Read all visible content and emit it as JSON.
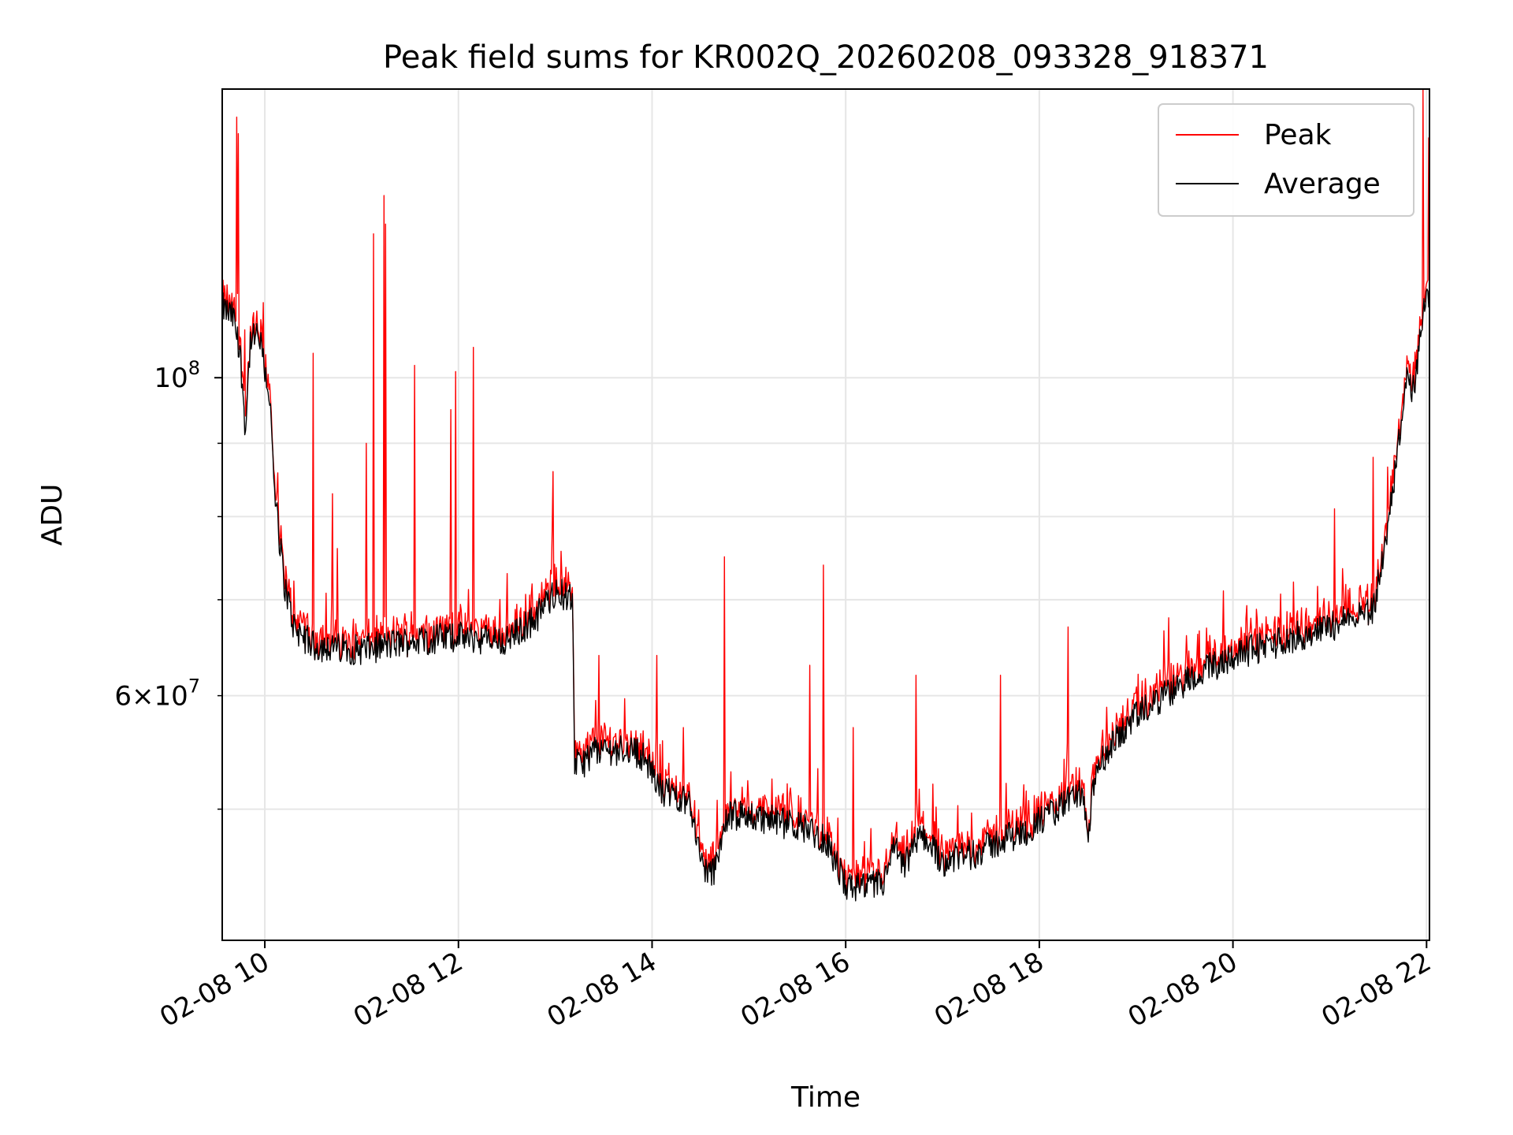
{
  "chart_data": {
    "type": "line",
    "title": "Peak field sums for KR002Q_20260208_093328_918371",
    "xlabel": "Time",
    "ylabel": "ADU",
    "yscale": "log",
    "x_unit": "hours since 02-08 00:00",
    "xlim": [
      9.56,
      22.03
    ],
    "ylim": [
      40500000,
      159000000
    ],
    "grid": true,
    "legend_position": "top-right",
    "x_ticks": [
      {
        "value": 10,
        "label": "02-08 10"
      },
      {
        "value": 12,
        "label": "02-08 12"
      },
      {
        "value": 14,
        "label": "02-08 14"
      },
      {
        "value": 16,
        "label": "02-08 16"
      },
      {
        "value": 18,
        "label": "02-08 18"
      },
      {
        "value": 20,
        "label": "02-08 20"
      },
      {
        "value": 22,
        "label": "02-08 22"
      }
    ],
    "y_major_ticks": [
      {
        "value": 100000000,
        "base": "10",
        "exp": "8"
      }
    ],
    "y_minor_ticks": [
      {
        "value": 50000000
      },
      {
        "value": 60000000,
        "mant": "6",
        "base": "10",
        "exp": "7"
      },
      {
        "value": 70000000
      },
      {
        "value": 80000000
      },
      {
        "value": 90000000
      }
    ],
    "series": [
      {
        "name": "Peak",
        "color": "#ff0000",
        "description": "Per-frame maximum field sum; tracks the average baseline with frequent sharp spikes",
        "spikes": [
          [
            9.71,
            152000000
          ],
          [
            9.73,
            148000000
          ],
          [
            9.79,
            108000000
          ],
          [
            9.92,
            110000000
          ],
          [
            10.05,
            99000000
          ],
          [
            10.5,
            104000000
          ],
          [
            10.7,
            83000000
          ],
          [
            10.75,
            76000000
          ],
          [
            11.05,
            90000000
          ],
          [
            11.12,
            126000000
          ],
          [
            11.23,
            134000000
          ],
          [
            11.25,
            128000000
          ],
          [
            11.55,
            102000000
          ],
          [
            11.92,
            95000000
          ],
          [
            11.97,
            101000000
          ],
          [
            12.15,
            105000000
          ],
          [
            12.5,
            73000000
          ],
          [
            12.98,
            86000000
          ],
          [
            13.45,
            64000000
          ],
          [
            14.05,
            64000000
          ],
          [
            14.75,
            75000000
          ],
          [
            15.63,
            63000000
          ],
          [
            15.77,
            74000000
          ],
          [
            16.08,
            57000000
          ],
          [
            16.73,
            62000000
          ],
          [
            17.6,
            62000000
          ],
          [
            18.3,
            67000000
          ],
          [
            19.34,
            68000000
          ],
          [
            19.9,
            71000000
          ],
          [
            21.05,
            81000000
          ],
          [
            21.45,
            88000000
          ],
          [
            21.96,
            159000000
          ],
          [
            22.02,
            147000000
          ]
        ]
      },
      {
        "name": "Average",
        "color": "#000000",
        "description": "Per-frame average field sum",
        "x": [
          9.56,
          9.68,
          9.75,
          9.8,
          9.85,
          9.93,
          9.96,
          10.05,
          10.1,
          10.2,
          10.3,
          10.5,
          11.0,
          11.5,
          12.0,
          12.5,
          12.8,
          13.0,
          13.18,
          13.2,
          13.25,
          13.4,
          13.6,
          13.8,
          13.9,
          14.0,
          14.1,
          14.3,
          14.4,
          14.5,
          14.6,
          14.65,
          14.7,
          14.8,
          15.0,
          15.3,
          15.6,
          15.8,
          16.0,
          16.2,
          16.4,
          16.5,
          16.6,
          16.7,
          16.8,
          17.0,
          17.3,
          17.6,
          17.9,
          18.2,
          18.35,
          18.45,
          18.5,
          18.55,
          18.6,
          18.8,
          19.0,
          19.3,
          19.6,
          20.0,
          20.5,
          21.0,
          21.3,
          21.45,
          21.6,
          21.75,
          21.8,
          21.85,
          21.9,
          21.95,
          22.03
        ],
        "y": [
          112000000,
          110000000,
          103000000,
          92000000,
          106000000,
          107000000,
          105000000,
          97000000,
          83000000,
          72000000,
          67000000,
          65000000,
          64600000,
          65500000,
          66000000,
          65500000,
          68000000,
          71000000,
          70000000,
          54000000,
          53500000,
          55000000,
          55000000,
          55000000,
          54500000,
          53000000,
          51500000,
          51000000,
          50500000,
          46000000,
          45000000,
          45500000,
          47500000,
          49500000,
          49500000,
          49000000,
          48500000,
          47500000,
          44200000,
          44000000,
          44500000,
          47000000,
          45500000,
          47000000,
          48000000,
          46000000,
          46500000,
          47500000,
          48500000,
          50000000,
          51000000,
          51500000,
          47000000,
          51000000,
          53500000,
          56000000,
          58000000,
          60000000,
          62000000,
          64000000,
          65500000,
          67000000,
          68500000,
          69000000,
          78000000,
          95000000,
          100000000,
          97000000,
          101000000,
          110000000,
          114000000
        ]
      }
    ]
  }
}
